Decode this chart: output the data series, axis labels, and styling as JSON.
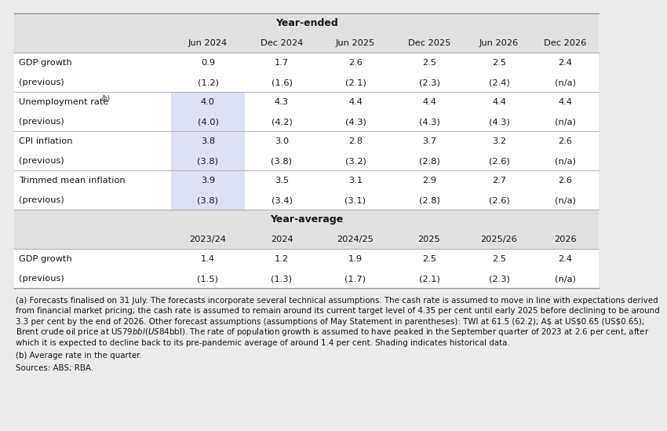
{
  "title_year_ended": "Year-ended",
  "title_year_average": "Year-average",
  "year_ended_headers": [
    "",
    "Jun 2024",
    "Dec 2024",
    "Jun 2025",
    "Dec 2025",
    "Jun 2026",
    "Dec 2026"
  ],
  "year_ended_rows": [
    [
      "GDP growth",
      "0.9",
      "1.7",
      "2.6",
      "2.5",
      "2.5",
      "2.4"
    ],
    [
      "(previous)",
      "(1.2)",
      "(1.6)",
      "(2.1)",
      "(2.3)",
      "(2.4)",
      "(n/a)"
    ],
    [
      "Unemployment rate",
      "4.0",
      "4.3",
      "4.4",
      "4.4",
      "4.4",
      "4.4"
    ],
    [
      "(previous)",
      "(4.0)",
      "(4.2)",
      "(4.3)",
      "(4.3)",
      "(4.3)",
      "(n/a)"
    ],
    [
      "CPI inflation",
      "3.8",
      "3.0",
      "2.8",
      "3.7",
      "3.2",
      "2.6"
    ],
    [
      "(previous)",
      "(3.8)",
      "(3.8)",
      "(3.2)",
      "(2.8)",
      "(2.6)",
      "(n/a)"
    ],
    [
      "Trimmed mean inflation",
      "3.9",
      "3.5",
      "3.1",
      "2.9",
      "2.7",
      "2.6"
    ],
    [
      "(previous)",
      "(3.8)",
      "(3.4)",
      "(3.1)",
      "(2.8)",
      "(2.6)",
      "(n/a)"
    ]
  ],
  "year_average_headers": [
    "",
    "2023/24",
    "2024",
    "2024/25",
    "2025",
    "2025/26",
    "2026"
  ],
  "year_average_rows": [
    [
      "GDP growth",
      "1.4",
      "1.2",
      "1.9",
      "2.5",
      "2.5",
      "2.4"
    ],
    [
      "(previous)",
      "(1.5)",
      "(1.3)",
      "(1.7)",
      "(2.1)",
      "(2.3)",
      "(n/a)"
    ]
  ],
  "footnote_a_lines": [
    "(a) Forecasts finalised on 31 July. The forecasts incorporate several technical assumptions. The cash rate is assumed to move in line with expectations derived",
    "from financial market pricing; the cash rate is assumed to remain around its current target level of 4.35 per cent until early 2025 before declining to be around",
    "3.3 per cent by the end of 2026. Other forecast assumptions (assumptions of May Statement in parentheses): TWI at 61.5 (62.2); A$ at US$0.65 (US$0.65);",
    "Brent crude oil price at US$79bbl (US$84bbl). The rate of population growth is assumed to have peaked in the September quarter of 2023 at 2.6 per cent, after",
    "which it is expected to decline back to its pre-pandemic average of around 1.4 per cent. Shading indicates historical data."
  ],
  "footnote_b": "(b) Average rate in the quarter.",
  "sources": "Sources: ABS; RBA.",
  "bg_color": "#ebebeb",
  "table_bg": "#ffffff",
  "header_bg": "#e0e0e0",
  "shade_color": "#dde0f0",
  "text_color": "#1a1a1a",
  "line_color": "#b0b0b0",
  "title_fontsize": 9.0,
  "header_fontsize": 8.2,
  "data_fontsize": 8.2,
  "footnote_fontsize": 7.4
}
